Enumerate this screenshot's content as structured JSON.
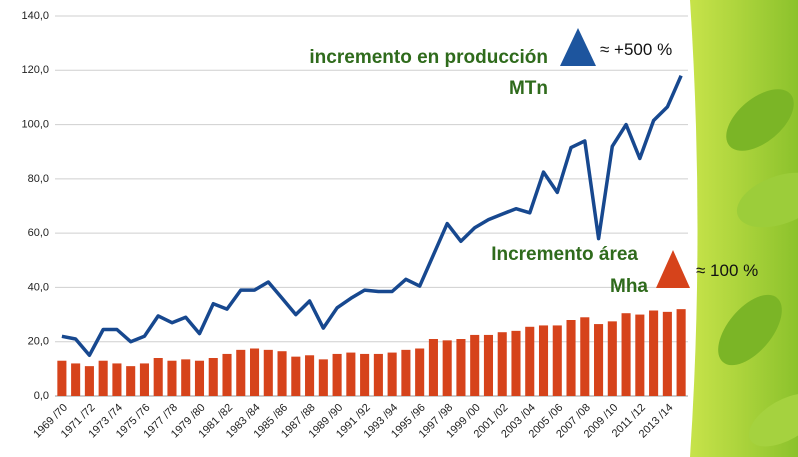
{
  "chart_data": {
    "type": "bar-line",
    "categories": [
      "1969 /70",
      null,
      "1971 /72",
      null,
      "1973 /74",
      null,
      "1975 /76",
      null,
      "1977 /78",
      null,
      "1979 /80",
      null,
      "1981 /82",
      null,
      "1983 /84",
      null,
      "1985 /86",
      null,
      "1987 /88",
      null,
      "1989 /90",
      null,
      "1991 /92",
      null,
      "1993 /94",
      null,
      "1995 /96",
      null,
      "1997 /98",
      null,
      "1999 /00",
      null,
      "2001 /02",
      null,
      "2003 /04",
      null,
      "2005 /06",
      null,
      "2007 /08",
      null,
      "2009 /10",
      null,
      "2011 /12",
      null,
      "2013 /14",
      null
    ],
    "series": [
      {
        "kind": "bar",
        "color": "#d6431b",
        "values": [
          13,
          12,
          11,
          13,
          12,
          11,
          12,
          14,
          13,
          13.5,
          13,
          14,
          15.5,
          17,
          17.5,
          17,
          16.5,
          14.5,
          15,
          13.5,
          15.5,
          16,
          15.5,
          15.5,
          16,
          17,
          17.5,
          21,
          20.5,
          21,
          22.5,
          22.5,
          23.5,
          24,
          25.5,
          26,
          26,
          28,
          29,
          26.5,
          27.5,
          30.5,
          30,
          31.5,
          31,
          32
        ]
      },
      {
        "kind": "line",
        "color": "#17488f",
        "values": [
          22,
          21,
          15,
          24.5,
          24.5,
          20,
          22,
          29.5,
          27,
          29,
          23,
          34,
          32,
          39,
          39,
          42,
          36,
          30,
          35,
          25,
          32.5,
          36,
          39,
          38.5,
          38.5,
          43,
          40.5,
          52,
          63.5,
          57,
          62,
          65,
          67,
          69,
          67.5,
          82.5,
          75,
          91.5,
          94,
          58,
          92,
          100,
          87.5,
          101.5,
          106.5,
          118
        ]
      }
    ],
    "ylim": [
      0,
      140
    ],
    "yticks": [
      {
        "value": 0,
        "label": "0,0"
      },
      {
        "value": 20,
        "label": "20,0"
      },
      {
        "value": 40,
        "label": "40,0"
      },
      {
        "value": 60,
        "label": "60,0"
      },
      {
        "value": 80,
        "label": "80,0"
      },
      {
        "value": 100,
        "label": "100,0"
      },
      {
        "value": 120,
        "label": "120,0"
      },
      {
        "value": 140,
        "label": "140,0"
      }
    ],
    "grid": true,
    "annotations": [
      "incremento en producción",
      "MTn",
      "≈ +500 %",
      "Incremento área",
      "Mha",
      "≈ 100 %"
    ]
  }
}
